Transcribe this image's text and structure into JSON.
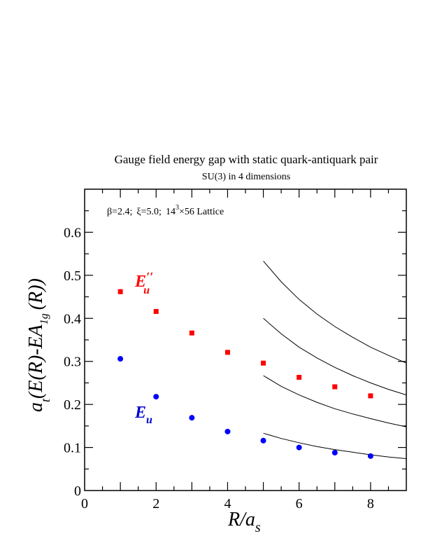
{
  "chart_data": {
    "type": "scatter",
    "title": "Gauge field energy gap with static quark-antiquark pair",
    "subtitle": "SU(3) in 4 dimensions",
    "annotation": {
      "beta": "β=2.4;",
      "xi": "ξ=5.0;",
      "lattice_a": "14",
      "lattice_exp": "3",
      "lattice_b": "×56 Lattice"
    },
    "xlabel": {
      "main": "R/a",
      "sub": "s"
    },
    "ylabel": {
      "a": "a",
      "a_sub": "t",
      "mid": "(E(R)-E",
      "A": "A",
      "sub_1g": "1g",
      "end": "(R))"
    },
    "xlim": [
      0,
      9
    ],
    "ylim": [
      0,
      0.7
    ],
    "x_ticks": [
      0,
      2,
      4,
      6,
      8
    ],
    "y_ticks": [
      0,
      0.1,
      0.2,
      0.3,
      0.4,
      0.5,
      0.6
    ],
    "grid": false,
    "series": [
      {
        "name": "E_u''",
        "label_main": "E",
        "label_prime": "′′",
        "label_sub": "u",
        "color": "#ff0000",
        "marker": "square",
        "x": [
          1,
          2,
          3,
          4,
          5,
          6,
          7,
          8
        ],
        "y": [
          0.462,
          0.416,
          0.366,
          0.321,
          0.296,
          0.263,
          0.241,
          0.22
        ],
        "err": [
          0.006,
          0.003,
          0.003,
          0.003,
          0.004,
          0.003,
          0.003,
          0.003
        ]
      },
      {
        "name": "E_u",
        "label_main": "E",
        "label_sub": "u",
        "color": "#0000ff",
        "marker": "circle",
        "x": [
          1,
          2,
          3,
          4,
          5,
          6,
          7,
          8
        ],
        "y": [
          0.306,
          0.218,
          0.169,
          0.137,
          0.116,
          0.1,
          0.088,
          0.08
        ],
        "err": [
          0.002,
          0.002,
          0.002,
          0.002,
          0.002,
          0.002,
          0.002,
          0.002
        ]
      }
    ],
    "curves": [
      {
        "x": [
          5,
          5.5,
          6,
          6.5,
          7,
          7.5,
          8,
          8.5,
          9
        ],
        "y": [
          0.133,
          0.121,
          0.111,
          0.102,
          0.095,
          0.089,
          0.083,
          0.078,
          0.074
        ]
      },
      {
        "x": [
          5,
          5.5,
          6,
          6.5,
          7,
          7.5,
          8,
          8.5,
          9
        ],
        "y": [
          0.267,
          0.242,
          0.222,
          0.205,
          0.19,
          0.178,
          0.167,
          0.157,
          0.148
        ]
      },
      {
        "x": [
          5,
          5.5,
          6,
          6.5,
          7,
          7.5,
          8,
          8.5,
          9
        ],
        "y": [
          0.4,
          0.364,
          0.333,
          0.308,
          0.286,
          0.267,
          0.25,
          0.235,
          0.222
        ]
      },
      {
        "x": [
          5,
          5.5,
          6,
          6.5,
          7,
          7.5,
          8,
          8.5,
          9
        ],
        "y": [
          0.533,
          0.485,
          0.444,
          0.41,
          0.381,
          0.356,
          0.333,
          0.314,
          0.296
        ]
      }
    ]
  }
}
